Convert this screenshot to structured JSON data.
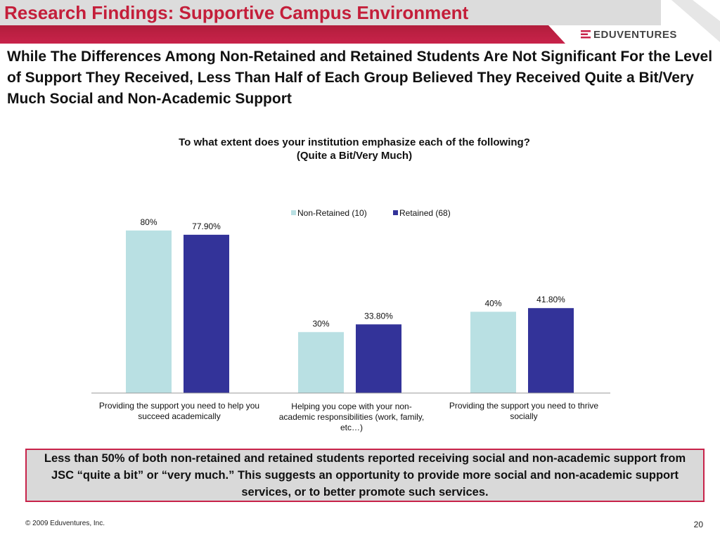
{
  "slide": {
    "title": "Research Findings: Supportive Campus Environment",
    "logo_text": "EDUVENTURES",
    "headline": "While The Differences Among Non-Retained and Retained Students Are Not Significant For the Level of Support They Received, Less Than Half of Each Group Believed They Received Quite a Bit/Very Much Social and Non-Academic Support",
    "question_line1": "To what extent does your institution emphasize each of the following?",
    "question_line2": "(Quite a Bit/Very Much)",
    "callout": "Less than 50% of both non-retained and retained students reported receiving social and non-academic support from JSC “quite a bit” or “very much.” This suggests an opportunity to provide more social and non-academic support services, or to better promote such services.",
    "copyright": "© 2009 Eduventures, Inc.",
    "page_number": "20"
  },
  "colors": {
    "title_red": "#c41e3a",
    "band_red": "#c8234a",
    "non_retained": "#b9e0e3",
    "retained": "#333399"
  },
  "chart_data": {
    "type": "bar",
    "categories": [
      "Providing the support you need to help you succeed academically",
      "Helping you cope with your non-academic responsibilities (work, family, etc…)",
      "Providing the support you need to thrive socially"
    ],
    "series": [
      {
        "name": "Non-Retained (10)",
        "values": [
          80,
          30,
          40
        ],
        "labels": [
          "80%",
          "30%",
          "40%"
        ]
      },
      {
        "name": "Retained (68)",
        "values": [
          77.9,
          33.8,
          41.8
        ],
        "labels": [
          "77.90%",
          "33.80%",
          "41.80%"
        ]
      }
    ],
    "ylim": [
      0,
      100
    ],
    "legend": "top-right",
    "grid": false
  }
}
